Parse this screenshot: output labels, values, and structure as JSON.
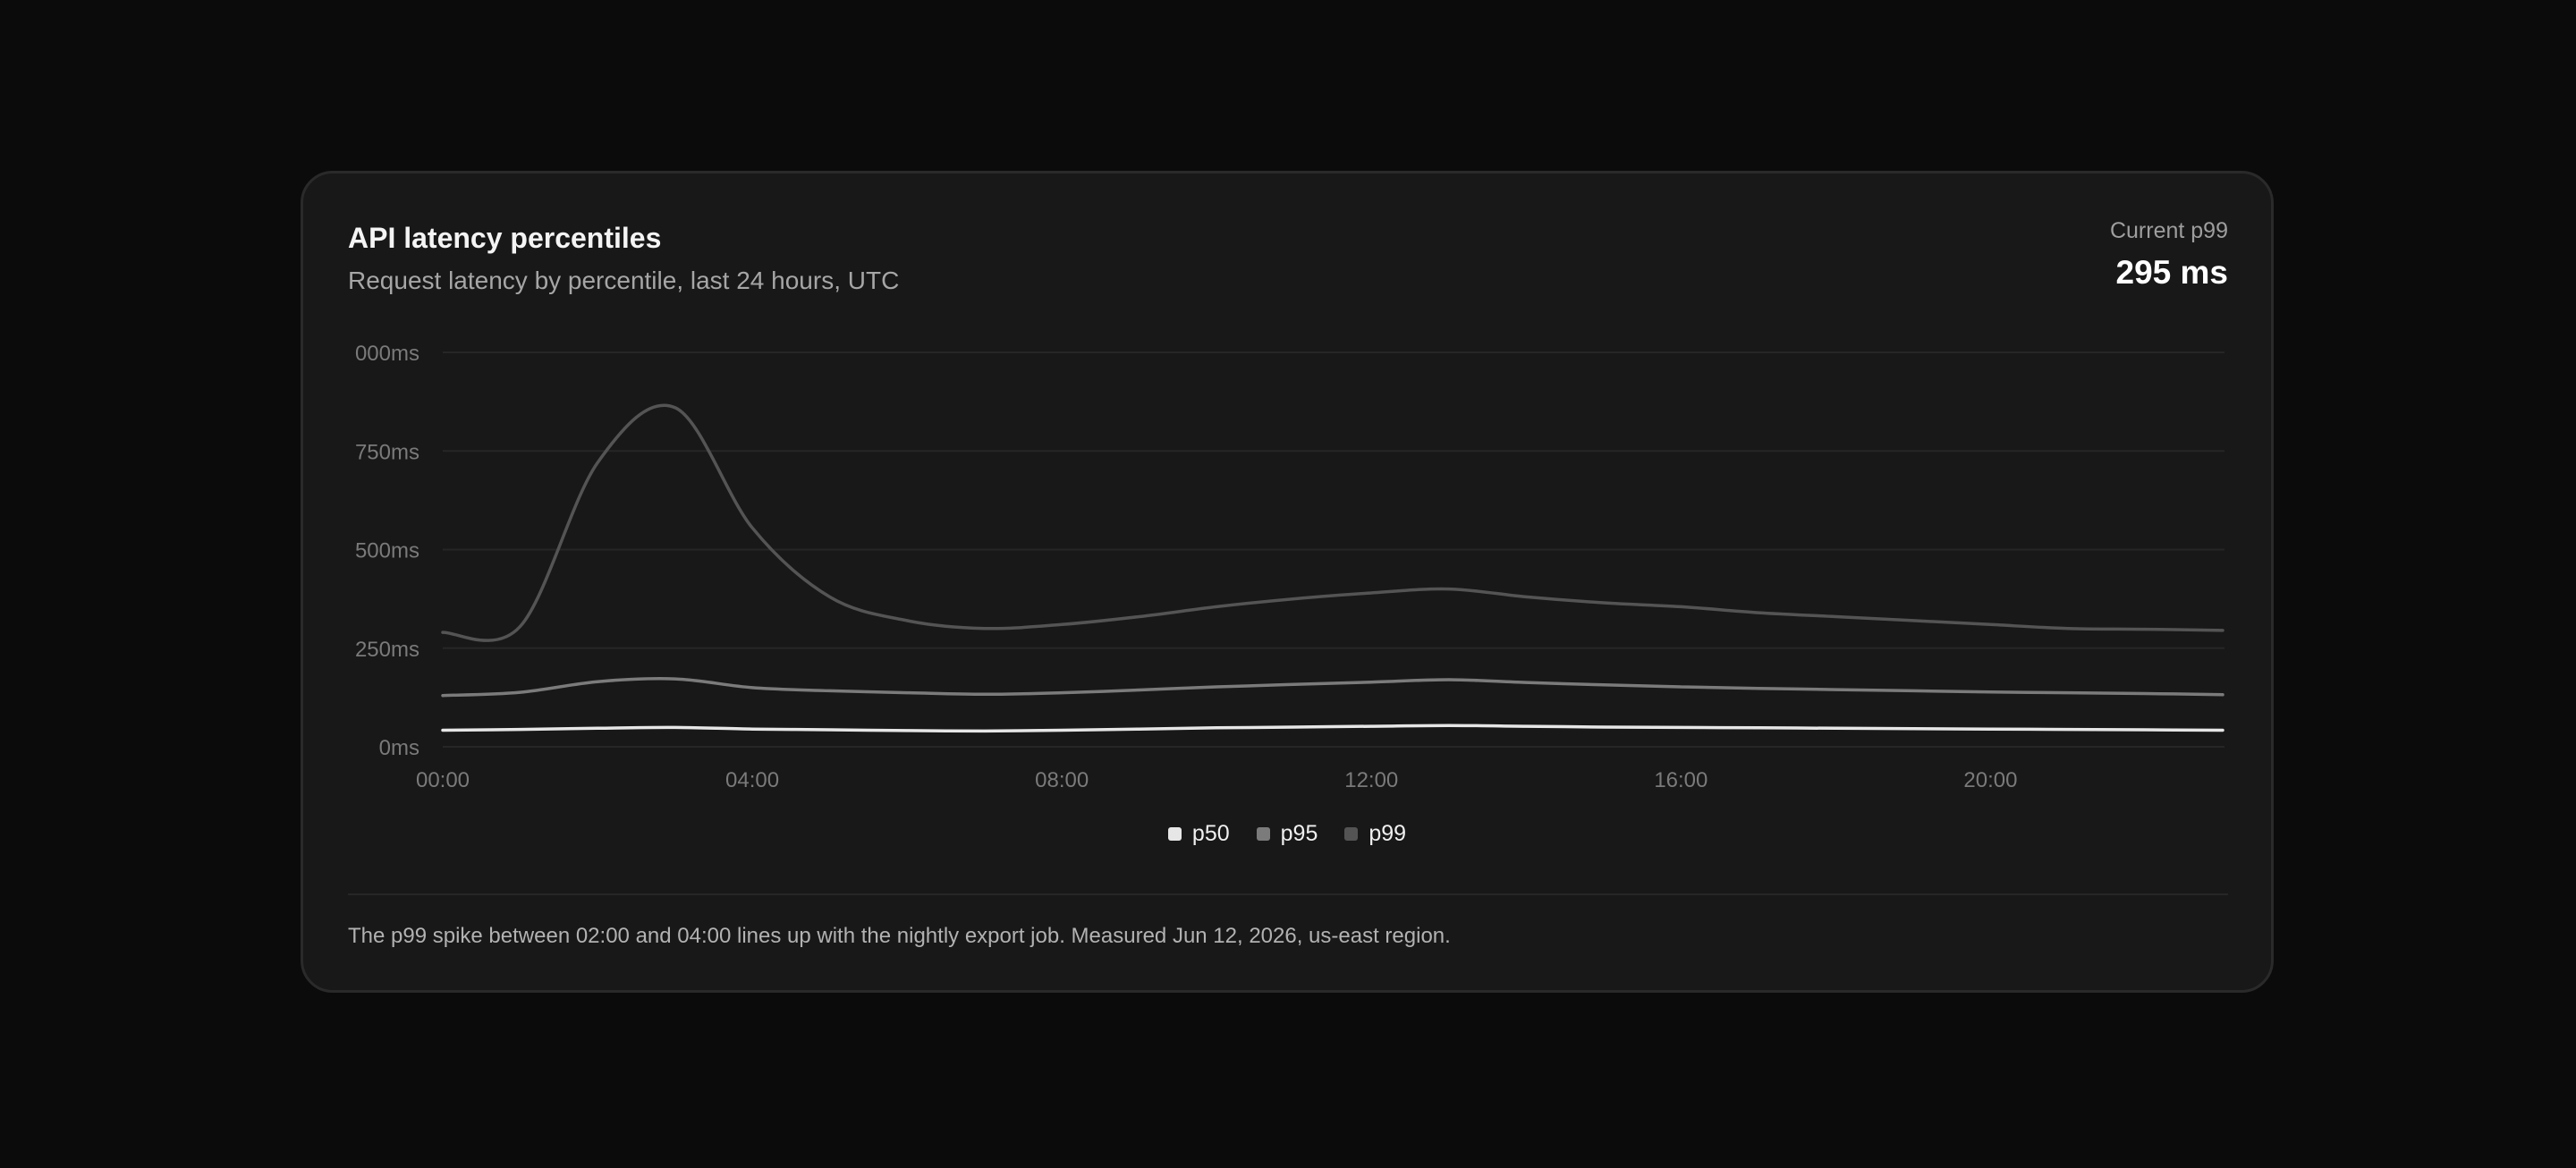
{
  "header": {
    "title": "API latency percentiles",
    "subtitle": "Request latency by percentile, last 24 hours, UTC"
  },
  "metric": {
    "label": "Current p99",
    "value": "295 ms"
  },
  "footer": {
    "note": "The p99 spike between 02:00 and 04:00 lines up with the nightly export job. Measured Jun 12, 2026, us-east region."
  },
  "chart_data": {
    "type": "line",
    "x": [
      "00:00",
      "01:00",
      "02:00",
      "03:00",
      "04:00",
      "05:00",
      "06:00",
      "07:00",
      "08:00",
      "09:00",
      "10:00",
      "11:00",
      "12:00",
      "13:00",
      "14:00",
      "15:00",
      "16:00",
      "17:00",
      "18:00",
      "19:00",
      "20:00",
      "21:00",
      "22:00",
      "23:00"
    ],
    "x_tick_labels": [
      "00:00",
      "04:00",
      "08:00",
      "12:00",
      "16:00",
      "20:00"
    ],
    "y_tick_labels": [
      "0ms",
      "250ms",
      "500ms",
      "750ms",
      "000ms"
    ],
    "ylim": [
      0,
      1000
    ],
    "grid": true,
    "legend_placement": "bottom-center",
    "series": [
      {
        "name": "p50",
        "color": "#e6e6e6",
        "values": [
          42,
          44,
          47,
          49,
          45,
          43,
          41,
          40,
          42,
          45,
          48,
          50,
          52,
          54,
          52,
          50,
          49,
          48,
          47,
          46,
          45,
          44,
          43,
          42
        ]
      },
      {
        "name": "p95",
        "color": "#7b7b7b",
        "values": [
          130,
          138,
          165,
          172,
          150,
          142,
          137,
          133,
          137,
          144,
          152,
          158,
          164,
          170,
          163,
          157,
          152,
          148,
          145,
          142,
          139,
          137,
          135,
          132
        ]
      },
      {
        "name": "p99",
        "color": "#545454",
        "values": [
          290,
          305,
          720,
          860,
          555,
          380,
          320,
          300,
          310,
          330,
          355,
          375,
          390,
          400,
          380,
          365,
          355,
          340,
          330,
          320,
          310,
          300,
          298,
          295
        ]
      }
    ]
  }
}
